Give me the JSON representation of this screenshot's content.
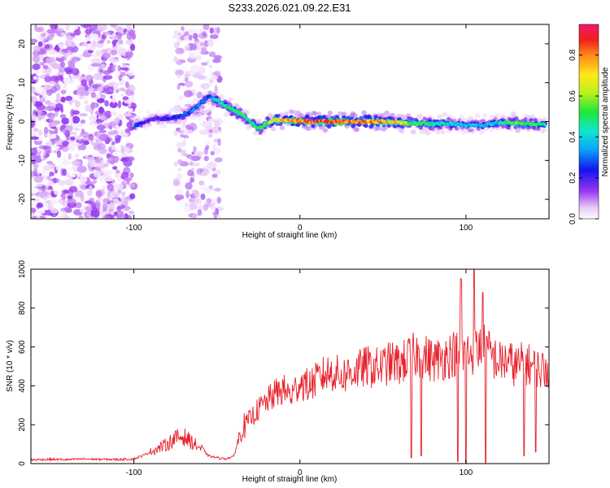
{
  "figure_title": "S233.2026.021.09.22.E31",
  "colors": {
    "snr_line": "#e8202a",
    "axis": "#000000",
    "background": "#ffffff"
  },
  "chart_data": [
    {
      "type": "heatmap",
      "name": "frequency-spectrogram",
      "title": "S233.2026.021.09.22.E31",
      "xlabel": "Height of straight line (km)",
      "ylabel": "Frequency (Hz)",
      "xlim": [
        -162,
        150
      ],
      "ylim": [
        -25,
        25
      ],
      "x_ticks": [
        -100,
        0,
        100
      ],
      "y_ticks": [
        -20,
        -10,
        0,
        10,
        20
      ],
      "colorbar": {
        "label": "Normalized spectral amplitude",
        "range": [
          0.0,
          0.95
        ],
        "ticks": [
          0.0,
          0.2,
          0.4,
          0.6,
          0.8
        ],
        "tick_labels": [
          "0.0",
          "0.2",
          "0.4",
          "0.6",
          "0.8"
        ]
      },
      "ridge": {
        "description": "frequency of peak amplitude vs height",
        "x": [
          -100,
          -90,
          -80,
          -70,
          -60,
          -55,
          -50,
          -45,
          -40,
          -35,
          -30,
          -25,
          -20,
          -15,
          -10,
          0,
          10,
          20,
          30,
          40,
          50,
          60,
          70,
          80,
          90,
          100,
          110,
          120,
          130,
          140,
          148
        ],
        "y": [
          -1.2,
          0.5,
          0.8,
          1.5,
          4.5,
          6.5,
          5.5,
          4.2,
          3.0,
          1.8,
          0.0,
          -1.8,
          -0.6,
          0.5,
          0.3,
          0.2,
          0.0,
          0.0,
          0.0,
          0.0,
          0.0,
          -0.3,
          -0.5,
          -0.6,
          -0.5,
          -0.8,
          -1.0,
          -0.3,
          -0.4,
          -0.6,
          -0.7
        ],
        "peak_amplitude": [
          0.3,
          0.2,
          0.25,
          0.3,
          0.35,
          0.3,
          0.45,
          0.5,
          0.55,
          0.55,
          0.5,
          0.55,
          0.6,
          0.75,
          0.8,
          0.9,
          0.95,
          0.95,
          0.95,
          0.9,
          0.85,
          0.75,
          0.55,
          0.5,
          0.45,
          0.4,
          0.4,
          0.45,
          0.6,
          0.55,
          0.5
        ]
      },
      "noise_regions": [
        {
          "x_range": [
            -162,
            -100
          ],
          "y_range": [
            -25,
            25
          ],
          "amplitude_max": 0.15
        },
        {
          "x_range": [
            -75,
            -48
          ],
          "y_range": [
            -25,
            25
          ],
          "amplitude_max": 0.12
        }
      ]
    },
    {
      "type": "line",
      "name": "snr-trace",
      "xlabel": "Height of straight line (km)",
      "ylabel": "SNR (10 * v/v)",
      "xlim": [
        -162,
        150
      ],
      "ylim": [
        0,
        1000
      ],
      "x_ticks": [
        -100,
        0,
        100
      ],
      "y_ticks": [
        0,
        200,
        400,
        600,
        800,
        1000
      ],
      "series": [
        {
          "name": "SNR",
          "x": [
            -160,
            -150,
            -140,
            -130,
            -120,
            -110,
            -100,
            -95,
            -90,
            -85,
            -80,
            -75,
            -70,
            -65,
            -60,
            -55,
            -50,
            -45,
            -40,
            -35,
            -30,
            -25,
            -20,
            -15,
            -10,
            -5,
            0,
            5,
            10,
            15,
            20,
            25,
            30,
            35,
            40,
            45,
            50,
            55,
            60,
            65,
            70,
            75,
            80,
            85,
            90,
            95,
            100,
            105,
            110,
            115,
            120,
            125,
            130,
            135,
            140,
            145,
            150
          ],
          "y": [
            20,
            22,
            20,
            24,
            22,
            21,
            24,
            40,
            60,
            80,
            100,
            130,
            140,
            110,
            80,
            40,
            30,
            25,
            35,
            180,
            230,
            280,
            320,
            360,
            380,
            350,
            420,
            400,
            430,
            460,
            470,
            450,
            470,
            480,
            500,
            490,
            500,
            520,
            510,
            540,
            560,
            550,
            530,
            540,
            560,
            570,
            560,
            580,
            600,
            560,
            520,
            530,
            500,
            520,
            500,
            480,
            500
          ],
          "spikes_up": [
            {
              "x": 97,
              "y": 950
            },
            {
              "x": 105,
              "y": 1000
            },
            {
              "x": 110,
              "y": 880
            }
          ],
          "spikes_down": [
            {
              "x": 67,
              "y": 30
            },
            {
              "x": 73,
              "y": 40
            },
            {
              "x": 95,
              "y": 10
            },
            {
              "x": 100,
              "y": 5
            },
            {
              "x": 112,
              "y": 5
            },
            {
              "x": 135,
              "y": 40
            },
            {
              "x": 142,
              "y": 60
            }
          ]
        }
      ]
    }
  ]
}
